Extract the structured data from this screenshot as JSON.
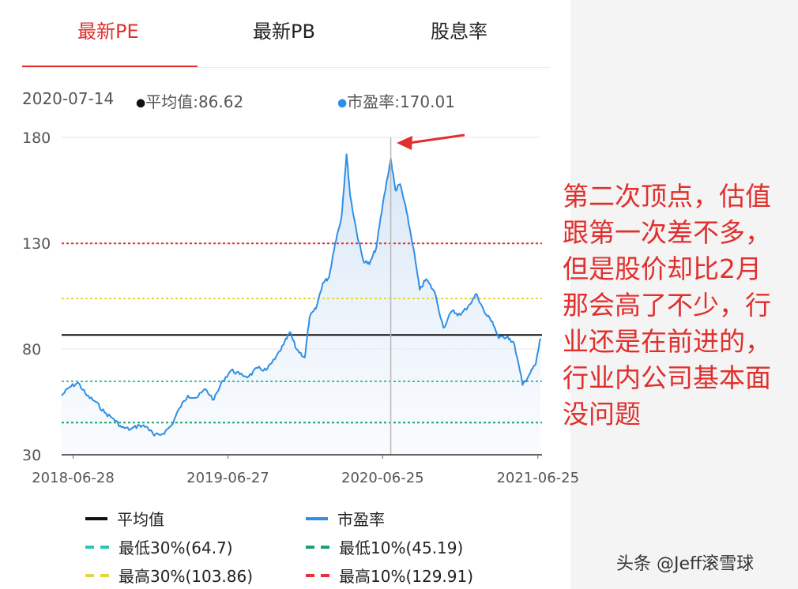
{
  "tabs": [
    {
      "label": "最新PE",
      "active": true
    },
    {
      "label": "最新PB",
      "active": false
    },
    {
      "label": "股息率",
      "active": false
    }
  ],
  "info": {
    "date": "2020-07-14",
    "avg_label": "平均值:86.62",
    "pe_label": "市盈率:170.01"
  },
  "chart_data": {
    "type": "line",
    "ylim": [
      30,
      180
    ],
    "yticks": [
      "180",
      "130",
      "80",
      "30"
    ],
    "xticks": [
      "2018-06-28",
      "2019-06-27",
      "2020-06-25",
      "2021-06-25"
    ],
    "grid": true,
    "series": [
      {
        "name": "市盈率",
        "color": "#2f8fe6",
        "points": [
          [
            "2018-06-01",
            58
          ],
          [
            "2018-06-20",
            62
          ],
          [
            "2018-07-10",
            64
          ],
          [
            "2018-07-30",
            58
          ],
          [
            "2018-08-20",
            55
          ],
          [
            "2018-09-10",
            50
          ],
          [
            "2018-10-01",
            47
          ],
          [
            "2018-10-20",
            43
          ],
          [
            "2018-11-10",
            42
          ],
          [
            "2018-12-01",
            44
          ],
          [
            "2018-12-20",
            43
          ],
          [
            "2019-01-05",
            39
          ],
          [
            "2019-01-25",
            40
          ],
          [
            "2019-02-15",
            44
          ],
          [
            "2019-03-05",
            52
          ],
          [
            "2019-03-25",
            58
          ],
          [
            "2019-04-15",
            57
          ],
          [
            "2019-05-05",
            61
          ],
          [
            "2019-05-25",
            56
          ],
          [
            "2019-06-15",
            65
          ],
          [
            "2019-07-05",
            70
          ],
          [
            "2019-07-25",
            68
          ],
          [
            "2019-08-15",
            67
          ],
          [
            "2019-09-05",
            71
          ],
          [
            "2019-09-25",
            70
          ],
          [
            "2019-10-15",
            75
          ],
          [
            "2019-11-05",
            82
          ],
          [
            "2019-11-20",
            88
          ],
          [
            "2019-12-05",
            80
          ],
          [
            "2019-12-25",
            76
          ],
          [
            "2020-01-05",
            95
          ],
          [
            "2020-01-20",
            99
          ],
          [
            "2020-02-05",
            111
          ],
          [
            "2020-02-20",
            114
          ],
          [
            "2020-03-05",
            130
          ],
          [
            "2020-03-20",
            142
          ],
          [
            "2020-04-01",
            172
          ],
          [
            "2020-04-10",
            152
          ],
          [
            "2020-04-25",
            135
          ],
          [
            "2020-05-10",
            122
          ],
          [
            "2020-05-25",
            120
          ],
          [
            "2020-06-10",
            128
          ],
          [
            "2020-06-25",
            148
          ],
          [
            "2020-07-14",
            170
          ],
          [
            "2020-07-25",
            155
          ],
          [
            "2020-08-05",
            158
          ],
          [
            "2020-08-20",
            145
          ],
          [
            "2020-09-05",
            128
          ],
          [
            "2020-09-20",
            108
          ],
          [
            "2020-10-05",
            113
          ],
          [
            "2020-10-25",
            107
          ],
          [
            "2020-11-15",
            90
          ],
          [
            "2020-12-05",
            98
          ],
          [
            "2020-12-25",
            96
          ],
          [
            "2021-01-15",
            101
          ],
          [
            "2021-02-01",
            106
          ],
          [
            "2021-02-20",
            97
          ],
          [
            "2021-03-10",
            93
          ],
          [
            "2021-03-25",
            85
          ],
          [
            "2021-04-15",
            86
          ],
          [
            "2021-05-01",
            82
          ],
          [
            "2021-05-20",
            63
          ],
          [
            "2021-06-05",
            68
          ],
          [
            "2021-06-20",
            73
          ],
          [
            "2021-07-01",
            85
          ]
        ]
      }
    ],
    "reference_lines": [
      {
        "name": "平均值",
        "value": 86.62,
        "color": "#111111",
        "style": "solid"
      },
      {
        "name": "最高10%",
        "value": 129.91,
        "color": "#e8303a",
        "style": "dashed"
      },
      {
        "name": "最高30%",
        "value": 103.86,
        "color": "#e6d63a",
        "style": "dashed"
      },
      {
        "name": "最低30%",
        "value": 64.7,
        "color": "#2ec4b6",
        "style": "dashed"
      },
      {
        "name": "最低10%",
        "value": 45.19,
        "color": "#1aa36a",
        "style": "dashed"
      }
    ],
    "cursor_date": "2020-07-14",
    "date_range": [
      "2018-06-01",
      "2021-07-01"
    ]
  },
  "legend": [
    {
      "label": "平均值",
      "color": "#111111",
      "style": "solid"
    },
    {
      "label": "市盈率",
      "color": "#2f8fe6",
      "style": "solid"
    },
    {
      "label": "最低30%(64.7)",
      "color": "#2ec4b6",
      "style": "dashed"
    },
    {
      "label": "最低10%(45.19)",
      "color": "#1aa36a",
      "style": "dashed"
    },
    {
      "label": "最高30%(103.86)",
      "color": "#e6d63a",
      "style": "dashed"
    },
    {
      "label": "最高10%(129.91)",
      "color": "#e8303a",
      "style": "dashed"
    }
  ],
  "annotation": {
    "lines": [
      "第二次顶点，估值",
      "跟第一次差不多，",
      "但是股价却比2月",
      "那会高了不少，行",
      "业还是在前进的，",
      "行业内公司基本面",
      "没问题"
    ],
    "color": "#e0302e"
  },
  "watermark": "头条 @Jeff滚雪球"
}
